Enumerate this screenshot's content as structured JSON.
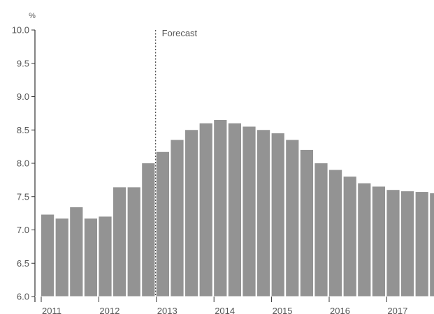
{
  "chart_data": {
    "type": "bar",
    "y_unit": "%",
    "ylim": [
      6.0,
      10.0
    ],
    "y_ticks": [
      "6.0",
      "6.5",
      "7.0",
      "7.5",
      "8.0",
      "8.5",
      "9.0",
      "9.5",
      "10.0"
    ],
    "x_tick_labels": [
      "2011",
      "2012",
      "2013",
      "2014",
      "2015",
      "2016",
      "2017"
    ],
    "annotation": "Forecast",
    "forecast_starts_after_bar": 8,
    "bar_color": "#939393",
    "series": [
      {
        "values": [
          7.23,
          7.17,
          7.34,
          7.17,
          7.2,
          7.64,
          7.64,
          8.0,
          8.17,
          8.35,
          8.5,
          8.6,
          8.65,
          8.6,
          8.55,
          8.5,
          8.45,
          8.35,
          8.2,
          8.0,
          7.9,
          7.8,
          7.7,
          7.65,
          7.6,
          7.58,
          7.57,
          7.55
        ]
      }
    ],
    "grid": false
  }
}
